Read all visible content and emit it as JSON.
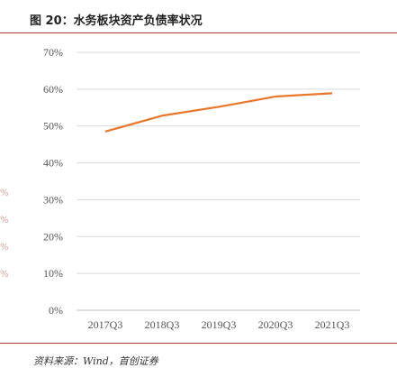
{
  "title": "图 20：水务板块资产负债率状况",
  "source": "资料来源：Wind，首创证券",
  "colors": {
    "rule": "#b43a3a",
    "line": "#e8762b",
    "grid": "#d9d9d9"
  },
  "chart_data": {
    "type": "line",
    "categories": [
      "2017Q3",
      "2018Q3",
      "2019Q3",
      "2020Q3",
      "2021Q3"
    ],
    "series": [
      {
        "values": [
          48.5,
          52.8,
          55.2,
          58.0,
          58.9
        ]
      }
    ],
    "ylim": [
      0,
      70
    ],
    "yticks": [
      "0%",
      "10%",
      "20%",
      "30%",
      "40%",
      "50%",
      "60%",
      "70%"
    ],
    "grid": true,
    "legend": "none"
  }
}
